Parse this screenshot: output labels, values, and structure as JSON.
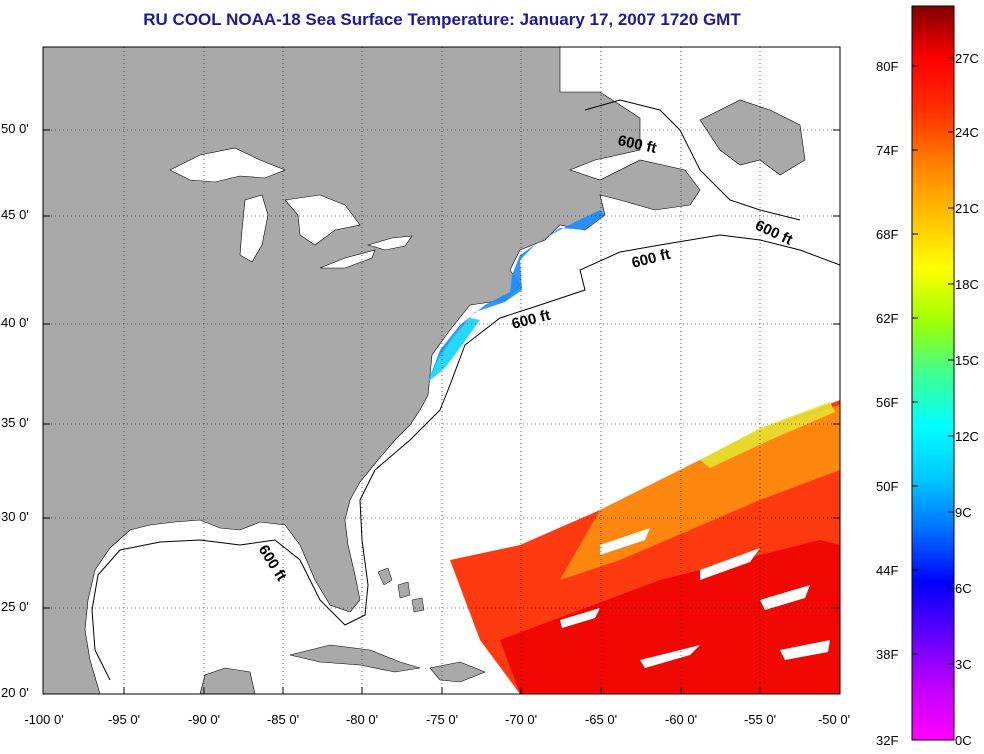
{
  "title": "RU COOL  NOAA-18  Sea Surface Temperature:  January 17, 2007 1720 GMT",
  "map": {
    "land_color": "#a9a9a9",
    "ocean_color": "#ffffff",
    "grid": "dotted",
    "lat_labels": [
      "50 0'",
      "45 0'",
      "40 0'",
      "35 0'",
      "30 0'",
      "25 0'",
      "20 0'"
    ],
    "lon_labels": [
      "-100 0'",
      "-95 0'",
      "-90 0'",
      "-85 0'",
      "-80 0'",
      "-75 0'",
      "-70 0'",
      "-65 0'",
      "-60 0'",
      "-55 0'",
      "-50 0'"
    ],
    "depth_contour_labels": [
      "600 ft",
      "600 ft",
      "600 ft",
      "600 ft",
      "600 ft"
    ]
  },
  "colorbar": {
    "fahrenheit_labels": [
      "80F",
      "74F",
      "68F",
      "62F",
      "56F",
      "50F",
      "44F",
      "38F",
      "32F"
    ],
    "celsius_labels": [
      "27C",
      "24C",
      "21C",
      "18C",
      "15C",
      "12C",
      "9C",
      "6C",
      "3C",
      "0C"
    ],
    "colors": [
      "#ff00ff",
      "#c000ff",
      "#6000ff",
      "#0000ff",
      "#0070ff",
      "#00c8ff",
      "#00ffff",
      "#40ff90",
      "#a0ff00",
      "#ffff00",
      "#ffc000",
      "#ff8000",
      "#ff3000",
      "#ff0000",
      "#800000"
    ]
  }
}
